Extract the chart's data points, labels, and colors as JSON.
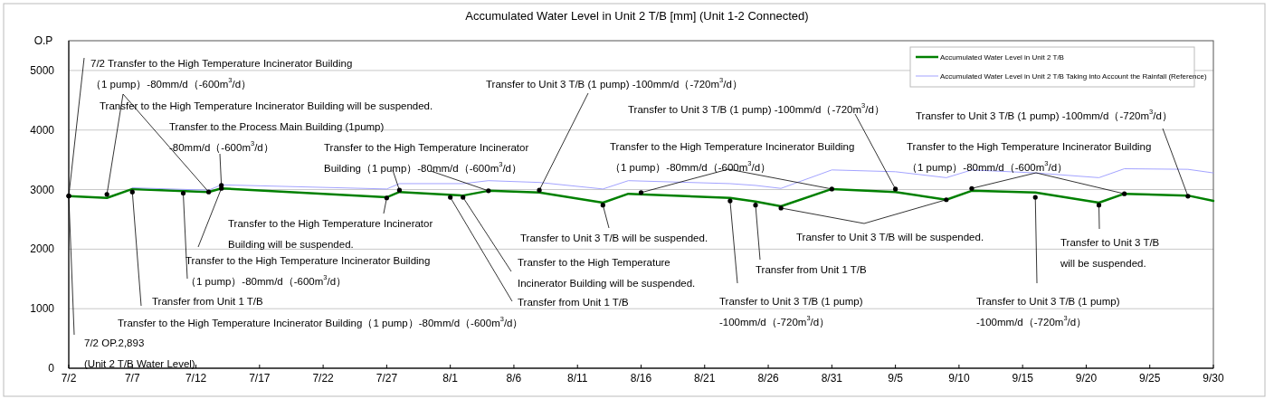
{
  "chart_data": {
    "type": "line",
    "title": "Accumulated Water Level in Unit 2 T/B [mm] (Unit 1-2 Connected)",
    "ylabel": "O.P",
    "x": [
      "--07-02",
      "--07-05",
      "--07-07",
      "--07-13",
      "--07-14",
      "--07-27",
      "--07-28",
      "--08-02",
      "--08-04",
      "--08-08",
      "--08-13",
      "--08-15",
      "--08-23",
      "--08-25",
      "--08-27",
      "--08-31",
      "--09-05",
      "--09-09",
      "--09-11",
      "--09-16",
      "--09-21",
      "--09-23",
      "--09-28",
      "--09-30"
    ],
    "series": [
      {
        "name": "Accumulated Water Level in Unit 2 T/B",
        "color": "#008000",
        "values": [
          2890,
          2860,
          3010,
          2960,
          3020,
          2870,
          2960,
          2900,
          2980,
          2950,
          2780,
          2930,
          2860,
          2800,
          2720,
          3010,
          2960,
          2830,
          2980,
          2950,
          2780,
          2930,
          2900,
          2810
        ]
      },
      {
        "name": "Accumulated Water Level in Unit 2 T/B Taking into Account the Rainfall (Reference)",
        "color": "#9999ff",
        "values": [
          null,
          null,
          3030,
          2990,
          3080,
          3010,
          3100,
          3100,
          3150,
          3120,
          3010,
          3150,
          3100,
          3070,
          3020,
          3330,
          3300,
          3200,
          3330,
          3280,
          3200,
          3350,
          3340,
          3280
        ]
      }
    ],
    "xlim": [
      "--07-02",
      "--09-30"
    ],
    "xticks": [
      {
        "value": "--07-02",
        "label": "7/2"
      },
      {
        "value": "--07-07",
        "label": "7/7"
      },
      {
        "value": "--07-12",
        "label": "7/12"
      },
      {
        "value": "--07-17",
        "label": "7/17"
      },
      {
        "value": "--07-22",
        "label": "7/22"
      },
      {
        "value": "--07-27",
        "label": "7/27"
      },
      {
        "value": "--08-01",
        "label": "8/1"
      },
      {
        "value": "--08-06",
        "label": "8/6"
      },
      {
        "value": "--08-11",
        "label": "8/11"
      },
      {
        "value": "--08-16",
        "label": "8/16"
      },
      {
        "value": "--08-21",
        "label": "8/21"
      },
      {
        "value": "--08-26",
        "label": "8/26"
      },
      {
        "value": "--08-31",
        "label": "8/31"
      },
      {
        "value": "--09-05",
        "label": "9/5"
      },
      {
        "value": "--09-10",
        "label": "9/10"
      },
      {
        "value": "--09-15",
        "label": "9/15"
      },
      {
        "value": "--09-20",
        "label": "9/20"
      },
      {
        "value": "--09-25",
        "label": "9/25"
      },
      {
        "value": "--09-30",
        "label": "9/30"
      }
    ],
    "ylim": [
      0,
      5500
    ],
    "yticks": [
      0,
      1000,
      2000,
      3000,
      4000,
      5000
    ],
    "grid": "y",
    "legend": "top right",
    "annotations": [
      {
        "text": "7/2  Transfer to the High Temperature Incinerator Building\n（1 pump）-80mm/d（-600m$^{3}$/d）",
        "x": "--07-02",
        "y": 2893
      },
      {
        "text": "Transfer to the High Temperature Incinerator Building will be suspended.",
        "x": "--07-05",
        "y": 2920
      },
      {
        "text": "Transfer to the Process Main Building (1pump)\n-80mm/d（-600m$^{3}$/d）",
        "x": "--07-14",
        "y": 3070
      },
      {
        "text": "Transfer to the High Temperature Incinerator\nBuilding（1 pump）-80mm/d（-600m$^{3}$/d）",
        "x": "--07-28",
        "y": 2990
      },
      {
        "text": "Transfer to Unit 3 T/B (1 pump) -100mm/d（-720m$^{3}$/d）",
        "x": "--08-08",
        "y": 2990
      },
      {
        "text": "Transfer to the High Temperature Incinerator\nBuilding will be suspended.",
        "x": "--07-27",
        "y": 2860
      },
      {
        "text": "Transfer to the High Temperature Incinerator Building\n（1 pump）-80mm/d（-600m$^{3}$/d）",
        "x": "--07-11",
        "y": 2940
      },
      {
        "text": "Transfer from Unit 1 T/B",
        "x": "--07-07",
        "y": 2960
      },
      "Transfer to the High Temperature Incinerator Building（1 pump）-80mm/d（-600m$^{3}$/d）",
      {
        "text": "7/2  OP.2,893\n(Unit 2 T/B Water Level)",
        "x": "--07-02",
        "y": 2893
      },
      {
        "text": "Transfer to the High Temperature\nIncinerator Building will be suspended.",
        "x": "--08-02",
        "y": 2870
      },
      {
        "text": "Transfer from Unit 1 T/B",
        "x": "--08-01",
        "y": 2870
      },
      {
        "text": "Transfer to Unit 3 T/B will be suspended.",
        "x": "--08-13",
        "y": 2740
      },
      {
        "text": "Transfer to the High Temperature Incinerator Building\n（1 pump）-80mm/d（-600m$^{3}$/d）",
        "x": "--08-16",
        "y": 2950
      },
      {
        "text": "Transfer to Unit 3 T/B (1 pump) -100mm/d（-720m$^{3}$/d）",
        "x": "--09-05",
        "y": 3010
      },
      {
        "text": "Transfer to Unit 3 T/B will be suspended.",
        "x": "--08-27",
        "y": 2690
      },
      {
        "text": "Transfer from Unit 1 T/B",
        "x": "--08-25",
        "y": 2740
      },
      {
        "text": "Transfer to Unit 3 T/B (1 pump)\n-100mm/d（-720m$^{3}$/d）",
        "x": "--08-23",
        "y": 2810
      },
      {
        "text": "Transfer to Unit 3 T/B (1 pump)  -100mm/d（-720m$^{3}$/d）",
        "x": "--09-28",
        "y": 2890
      },
      {
        "text": "Transfer to the High Temperature Incinerator Building\n（1 pump）-80mm/d（-600m$^{3}$/d）",
        "x": "--09-11",
        "y": 3020
      },
      {
        "text": "Transfer to Unit 3 T/B (1 pump)\n-100mm/d（-720m$^{3}$/d）",
        "x": "--09-16",
        "y": 2870
      },
      {
        "text": "Transfer to Unit 3 T/B\nwill be suspended.",
        "x": "--09-21",
        "y": 2740
      }
    ]
  }
}
